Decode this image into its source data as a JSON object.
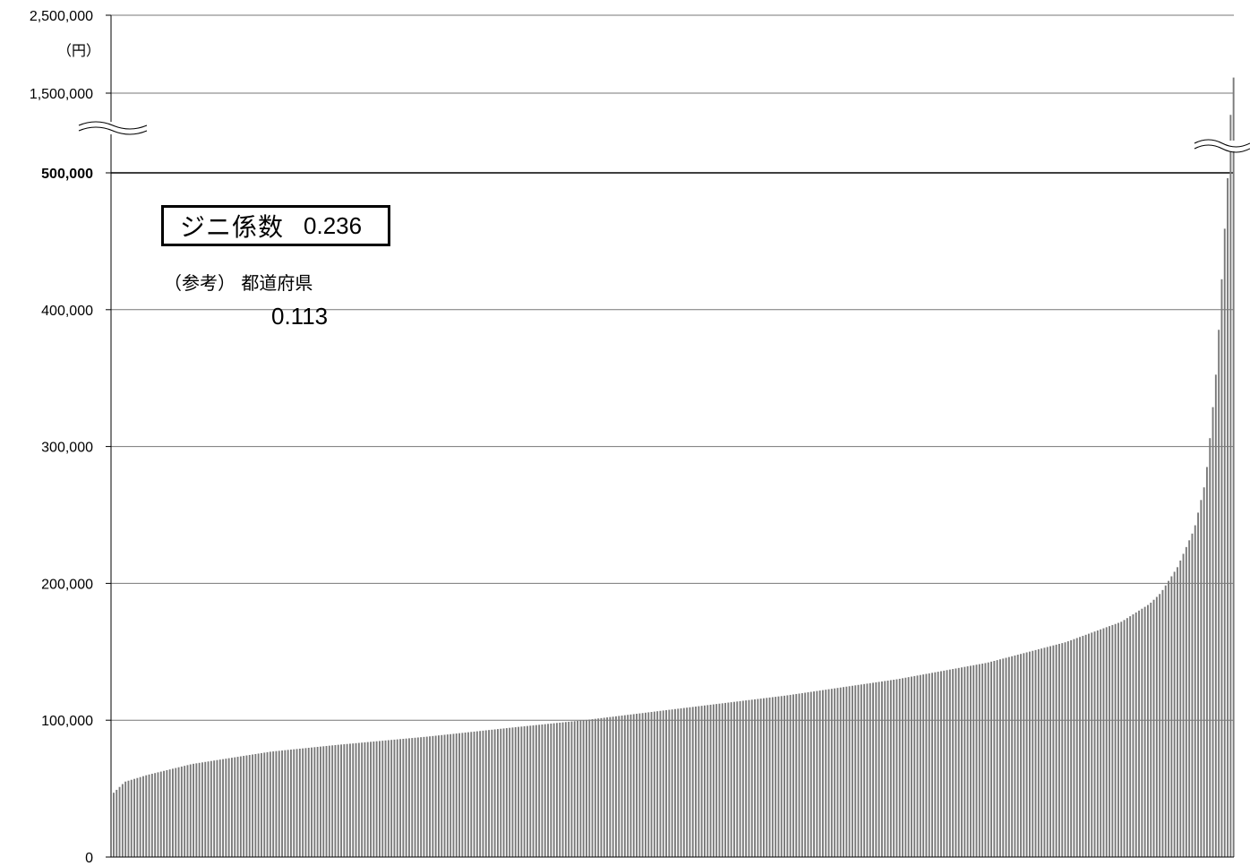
{
  "chart_data": {
    "type": "bar",
    "unit_label": "（円）",
    "y_ticks": [
      {
        "value": 0,
        "label": "0"
      },
      {
        "value": 100000,
        "label": "100,000"
      },
      {
        "value": 200000,
        "label": "200,000"
      },
      {
        "value": 300000,
        "label": "300,000"
      },
      {
        "value": 400000,
        "label": "400,000"
      },
      {
        "value": 500000,
        "label": "500,000"
      },
      {
        "value": 1500000,
        "label": "1,500,000"
      },
      {
        "value": 2500000,
        "label": "2,500,000"
      }
    ],
    "axis_break": {
      "after": 500000,
      "before": 1500000
    },
    "grid": true,
    "sorted_ascending": true,
    "n_bars": 380,
    "profile": [
      {
        "rank_fraction": 0.0,
        "value": 47000
      },
      {
        "rank_fraction": 0.01,
        "value": 55000
      },
      {
        "rank_fraction": 0.03,
        "value": 60000
      },
      {
        "rank_fraction": 0.07,
        "value": 68000
      },
      {
        "rank_fraction": 0.14,
        "value": 77000
      },
      {
        "rank_fraction": 0.2,
        "value": 82000
      },
      {
        "rank_fraction": 0.28,
        "value": 88000
      },
      {
        "rank_fraction": 0.36,
        "value": 95000
      },
      {
        "rank_fraction": 0.42,
        "value": 100000
      },
      {
        "rank_fraction": 0.5,
        "value": 108000
      },
      {
        "rank_fraction": 0.6,
        "value": 118000
      },
      {
        "rank_fraction": 0.7,
        "value": 130000
      },
      {
        "rank_fraction": 0.78,
        "value": 142000
      },
      {
        "rank_fraction": 0.85,
        "value": 157000
      },
      {
        "rank_fraction": 0.9,
        "value": 172000
      },
      {
        "rank_fraction": 0.925,
        "value": 185000
      },
      {
        "rank_fraction": 0.935,
        "value": 193000
      },
      {
        "rank_fraction": 0.95,
        "value": 212000
      },
      {
        "rank_fraction": 0.965,
        "value": 240000
      },
      {
        "rank_fraction": 0.975,
        "value": 275000
      },
      {
        "rank_fraction": 0.98,
        "value": 315000
      },
      {
        "rank_fraction": 0.985,
        "value": 360000
      },
      {
        "rank_fraction": 0.99,
        "value": 430000
      },
      {
        "rank_fraction": 0.995,
        "value": 500000
      },
      {
        "rank_fraction": 1.0,
        "value": 1700000
      }
    ],
    "gini": {
      "label": "ジニ係数",
      "value": "0.236"
    },
    "reference": {
      "label": "（参考）  都道府県",
      "value": "0.113"
    }
  }
}
